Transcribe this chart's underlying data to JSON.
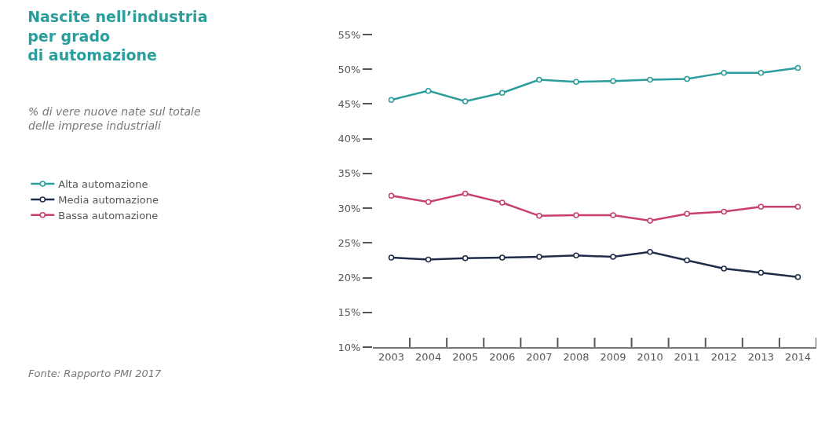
{
  "chart_data": {
    "type": "line",
    "title": "Nascite nell’industria\nper grado\ndi automazione",
    "subtitle": "% di vere nuove nate sul totale\ndelle imprese industriali",
    "categories": [
      "2003",
      "2004",
      "2005",
      "2006",
      "2007",
      "2008",
      "2009",
      "2010",
      "2011",
      "2012",
      "2013",
      "2014"
    ],
    "series": [
      {
        "name": "Alta automazione",
        "color": "#2a9d9c",
        "values": [
          45.6,
          46.9,
          45.4,
          46.6,
          48.5,
          48.2,
          48.3,
          48.5,
          48.6,
          49.5,
          49.5,
          50.2
        ]
      },
      {
        "name": "Media automazione",
        "color": "#1f2d4a",
        "values": [
          22.9,
          22.6,
          22.8,
          22.9,
          23.0,
          23.2,
          23.0,
          23.7,
          22.5,
          21.3,
          20.7,
          20.1
        ]
      },
      {
        "name": "Bassa automazione",
        "color": "#c8406a",
        "values": [
          31.8,
          30.9,
          32.1,
          30.8,
          28.9,
          29.0,
          29.0,
          28.2,
          29.2,
          29.5,
          30.2,
          30.2
        ]
      }
    ],
    "ylim": [
      10,
      55
    ],
    "yticks": [
      {
        "value": 10,
        "label": "10%"
      },
      {
        "value": 15,
        "label": "15%"
      },
      {
        "value": 20,
        "label": "20%"
      },
      {
        "value": 25,
        "label": "25%"
      },
      {
        "value": 30,
        "label": "30%"
      },
      {
        "value": 35,
        "label": "35%"
      },
      {
        "value": 40,
        "label": "40%"
      },
      {
        "value": 45,
        "label": "45%"
      },
      {
        "value": 50,
        "label": "50%"
      },
      {
        "value": 55,
        "label": "55%"
      }
    ],
    "legend": "left",
    "marker": "circle",
    "line_style": "solid",
    "annotations": [
      "Fonte: Rapporto PMI 2017"
    ]
  }
}
